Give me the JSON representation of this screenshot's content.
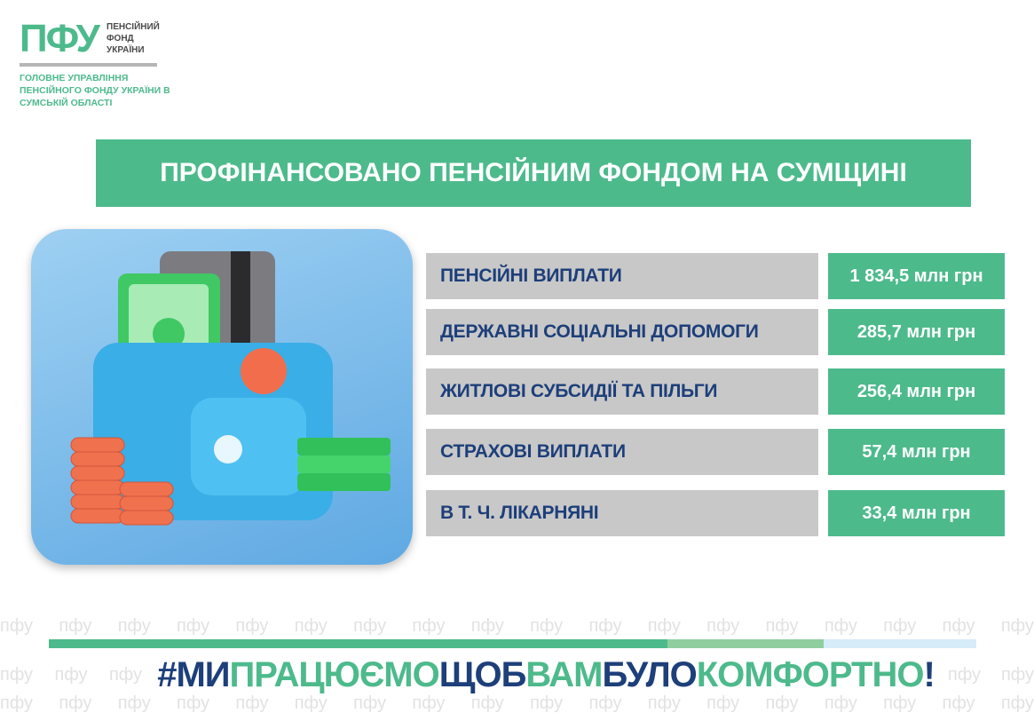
{
  "logo": {
    "mark": "ПФУ",
    "name": "ПЕНСІЙНИЙ ФОНД УКРАЇНИ",
    "subtitle": "ГОЛОВНЕ УПРАВЛІННЯ ПЕНСІЙНОГО ФОНДУ УКРАЇНИ В СУМСЬКІЙ ОБЛАСТІ"
  },
  "title": "ПРОФІНАНСОВАНО ПЕНСІЙНИМ ФОНДОМ НА СУМЩИНІ",
  "rows": [
    {
      "label": "ПЕНСІЙНІ ВИПЛАТИ",
      "value": "1 834,5 млн грн"
    },
    {
      "label": "ДЕРЖАВНІ СОЦІАЛЬНІ ДОПОМОГИ",
      "value": "285,7 млн грн"
    },
    {
      "label": "ЖИТЛОВІ СУБСИДІЇ ТА ПІЛЬГИ",
      "value": "256,4 млн грн"
    },
    {
      "label": "СТРАХОВІ ВИПЛАТИ",
      "value": "57,4 млн грн"
    },
    {
      "label": "В Т. Ч. ЛІКАРНЯНІ",
      "value": "33,4 млн грн"
    }
  ],
  "slogan": {
    "p1": "#МИ",
    "p2": "ПРАЦЮЄМО",
    "p3": "ЩОБ",
    "p4": "ВАМ",
    "p5": "БУЛО",
    "p6": "КОМФОРТНО",
    "p7": "!"
  },
  "watermark": "пфу",
  "colors": {
    "green": "#4dba8c",
    "light_green": "#8fcf9f",
    "light_blue": "#d6ecf8",
    "navy": "#1d3f7a",
    "gray": "#c8c8c8"
  }
}
